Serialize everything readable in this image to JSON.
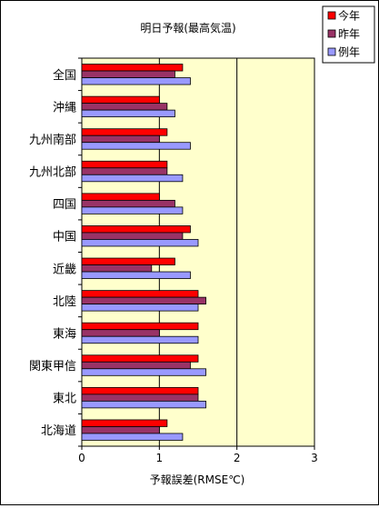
{
  "chart_data": {
    "type": "bar",
    "orientation": "horizontal",
    "title": "明日予報(最高気温)",
    "xlabel": "予報誤差(RMSE℃)",
    "ylabel": "",
    "xlim": [
      0,
      3
    ],
    "xticks": [
      0,
      1,
      2,
      3
    ],
    "grid": "vertical gridlines at 1, 2, 3",
    "legend_position": "top-right",
    "categories": [
      "全国",
      "沖縄",
      "九州南部",
      "九州北部",
      "四国",
      "中国",
      "近畿",
      "北陸",
      "東海",
      "関東甲信",
      "東北",
      "北海道"
    ],
    "series": [
      {
        "name": "今年",
        "color": "#ff0000",
        "values": [
          1.3,
          1.0,
          1.1,
          1.1,
          1.0,
          1.4,
          1.2,
          1.5,
          1.5,
          1.5,
          1.5,
          1.1
        ]
      },
      {
        "name": "昨年",
        "color": "#993366",
        "values": [
          1.2,
          1.1,
          1.0,
          1.1,
          1.2,
          1.3,
          0.9,
          1.6,
          1.0,
          1.4,
          1.5,
          1.0
        ]
      },
      {
        "name": "例年",
        "color": "#9999ff",
        "values": [
          1.4,
          1.2,
          1.4,
          1.3,
          1.3,
          1.5,
          1.4,
          1.5,
          1.5,
          1.6,
          1.6,
          1.3
        ]
      }
    ],
    "plot_background": "#ffffcc"
  }
}
